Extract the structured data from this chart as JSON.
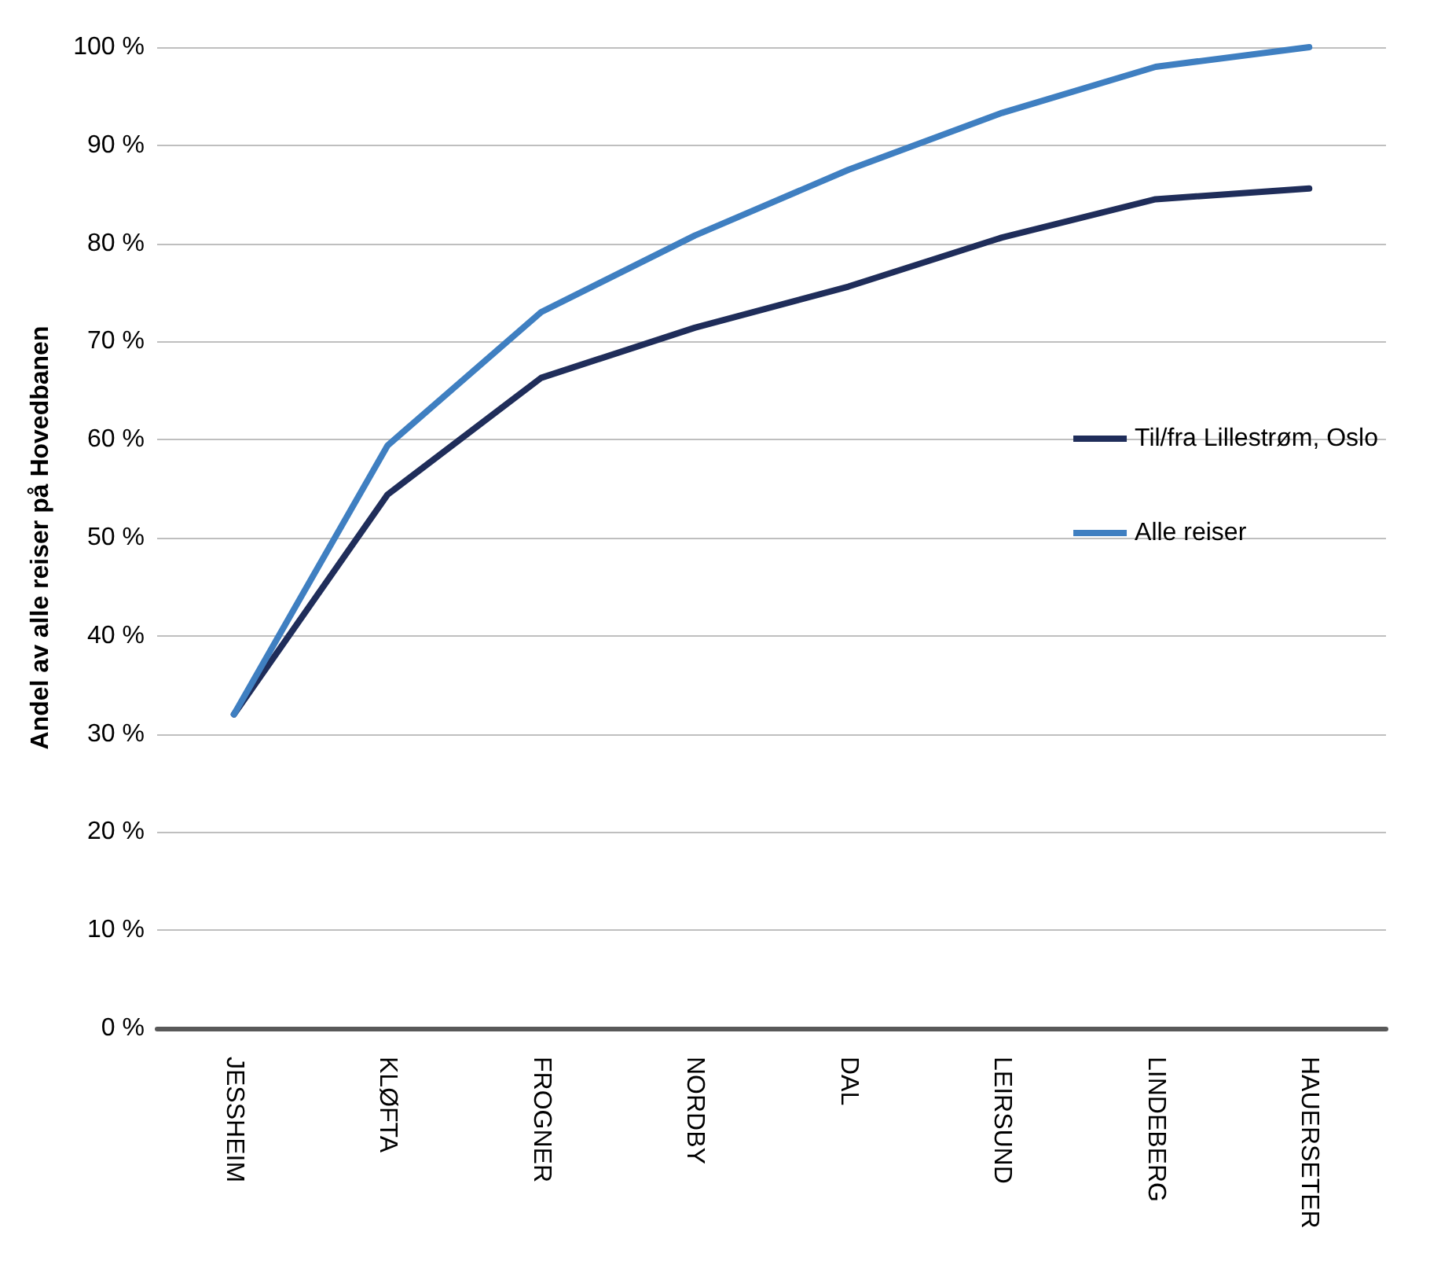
{
  "chart_data": {
    "type": "line",
    "ylabel": "Andel av alle reiser på Hovedbanen",
    "categories": [
      "JESSHEIM",
      "KLØFTA",
      "FROGNER",
      "NORDBY",
      "DAL",
      "LEIRSUND",
      "LINDEBERG",
      "HAUERSETER"
    ],
    "series": [
      {
        "name": "Til/fra Lillestrøm, Oslo",
        "color": "#1f2d5a",
        "values": [
          32,
          54.4,
          66.3,
          71.4,
          75.6,
          80.6,
          84.5,
          85.6
        ]
      },
      {
        "name": "Alle reiser",
        "color": "#3f7fc1",
        "values": [
          32,
          59.4,
          73,
          80.8,
          87.5,
          93.3,
          98,
          100
        ]
      }
    ],
    "ylim": [
      0,
      100
    ],
    "yticks": [
      {
        "value": 0,
        "label": "0 %"
      },
      {
        "value": 10,
        "label": "10 %"
      },
      {
        "value": 20,
        "label": "20 %"
      },
      {
        "value": 30,
        "label": "30 %"
      },
      {
        "value": 40,
        "label": "40 %"
      },
      {
        "value": 50,
        "label": "50 %"
      },
      {
        "value": 60,
        "label": "60 %"
      },
      {
        "value": 70,
        "label": "70 %"
      },
      {
        "value": 80,
        "label": "80 %"
      },
      {
        "value": 90,
        "label": "90 %"
      },
      {
        "value": 100,
        "label": "100 %"
      }
    ],
    "grid": "y",
    "legend": "right",
    "marker": "none",
    "line_style": "solid"
  }
}
